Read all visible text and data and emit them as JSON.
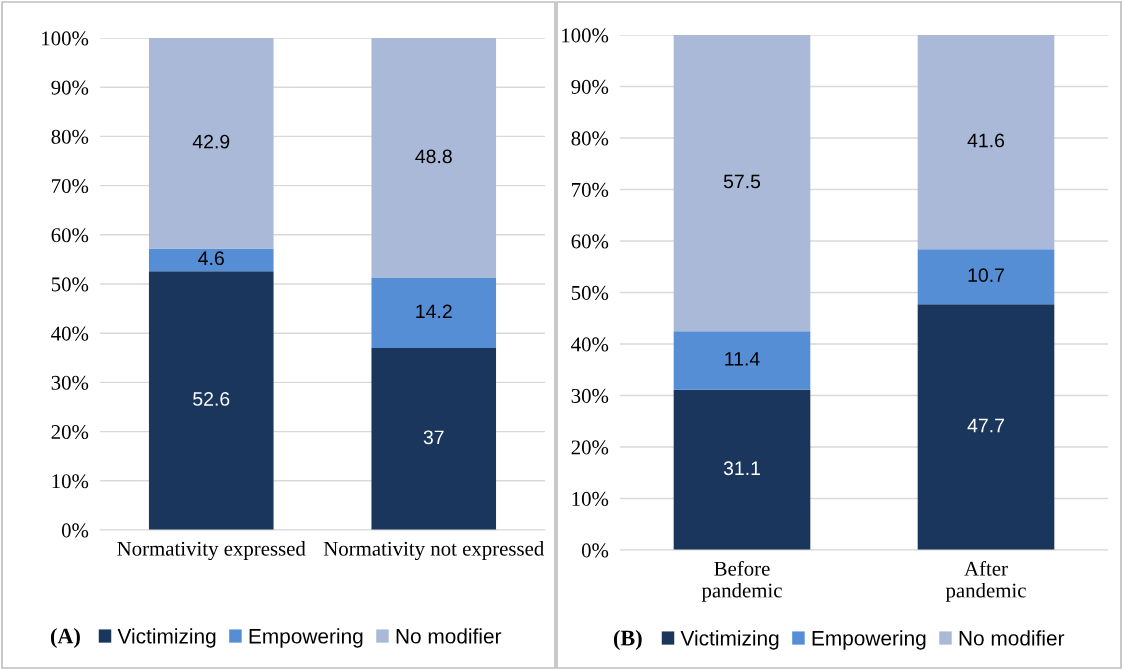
{
  "chart_data": [
    {
      "type": "bar",
      "stacked": true,
      "categories": [
        "Normativity expressed",
        "Normativity not expressed"
      ],
      "series": [
        {
          "name": "Victimizing",
          "color": "#1b365d",
          "values": [
            52.6,
            37
          ]
        },
        {
          "name": "Empowering",
          "color": "#558ed5",
          "values": [
            4.6,
            14.2
          ]
        },
        {
          "name": "No modifier",
          "color": "#a9b9d7",
          "values": [
            42.9,
            48.8
          ]
        }
      ],
      "ylim": [
        0,
        100
      ],
      "yticks": [
        {
          "value": 0,
          "label": "0%"
        },
        {
          "value": 10,
          "label": "10%"
        },
        {
          "value": 20,
          "label": "20%"
        },
        {
          "value": 30,
          "label": "30%"
        },
        {
          "value": 40,
          "label": "40%"
        },
        {
          "value": 50,
          "label": "50%"
        },
        {
          "value": 60,
          "label": "60%"
        },
        {
          "value": 70,
          "label": "70%"
        },
        {
          "value": 80,
          "label": "80%"
        },
        {
          "value": 90,
          "label": "90%"
        },
        {
          "value": 100,
          "label": "100%"
        }
      ],
      "grid": "y",
      "data_labels": true,
      "legend": "bottom",
      "annotations": [
        "(A)"
      ]
    },
    {
      "type": "bar",
      "stacked": true,
      "categories": [
        "Before\npandemic",
        "After\npandemic"
      ],
      "series": [
        {
          "name": "Victimizing",
          "color": "#1b365d",
          "values": [
            31.1,
            47.7
          ]
        },
        {
          "name": "Empowering",
          "color": "#558ed5",
          "values": [
            11.4,
            10.7
          ]
        },
        {
          "name": "No modifier",
          "color": "#a9b9d7",
          "values": [
            57.5,
            41.6
          ]
        }
      ],
      "ylim": [
        0,
        100
      ],
      "yticks": [
        {
          "value": 0,
          "label": "0%"
        },
        {
          "value": 10,
          "label": "10%"
        },
        {
          "value": 20,
          "label": "20%"
        },
        {
          "value": 30,
          "label": "30%"
        },
        {
          "value": 40,
          "label": "40%"
        },
        {
          "value": 50,
          "label": "50%"
        },
        {
          "value": 60,
          "label": "60%"
        },
        {
          "value": 70,
          "label": "70%"
        },
        {
          "value": 80,
          "label": "80%"
        },
        {
          "value": 90,
          "label": "90%"
        },
        {
          "value": 100,
          "label": "100%"
        }
      ],
      "grid": "y",
      "data_labels": true,
      "legend": "bottom",
      "annotations": [
        "(B)"
      ]
    }
  ]
}
